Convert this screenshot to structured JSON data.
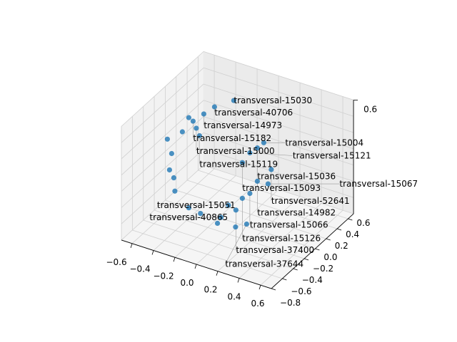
{
  "chart_data": {
    "type": "scatter",
    "projection": "3d",
    "title": "",
    "xlabel": "",
    "ylabel": "",
    "zlabel": "",
    "xlim": [
      -0.7,
      0.7
    ],
    "ylim": [
      -0.8,
      0.7
    ],
    "zlim": [
      -0.8,
      0.6
    ],
    "x_ticks": [
      "−0.6",
      "−0.4",
      "−0.2",
      "0.0",
      "0.2",
      "0.4",
      "0.6"
    ],
    "y_ticks": [
      "−0.8",
      "−0.6",
      "−0.4",
      "−0.2",
      "0.0",
      "0.2",
      "0.4",
      "0.6"
    ],
    "z_ticks": [
      "0.6"
    ],
    "grid": true,
    "marker_color": "#1f77b4",
    "points": [
      {
        "x": -0.06,
        "y": 0,
        "z": 0.7,
        "label": "transversal-15030"
      },
      {
        "x": -0.24,
        "y": 0,
        "z": 0.545,
        "label": "transversal-40706"
      },
      {
        "x": -0.34,
        "y": 0,
        "z": 0.415,
        "label": "transversal-14973"
      },
      {
        "x": -0.44,
        "y": 0,
        "z": 0.284,
        "label": "transversal-15182"
      },
      {
        "x": -0.41,
        "y": 0,
        "z": 0.21,
        "label": "transversal-15000"
      },
      {
        "x": -0.38,
        "y": 0,
        "z": 0.13,
        "label": "transversal-15119"
      },
      {
        "x": 0.22,
        "y": 0,
        "z": 0.3,
        "label": "transversal-15004"
      },
      {
        "x": 0.16,
        "y": 0,
        "z": 0.21,
        "label": "transversal-15036"
      },
      {
        "x": 0.09,
        "y": 0,
        "z": 0.12,
        "label": "transversal-15121"
      },
      {
        "x": 0.02,
        "y": 0,
        "z": -0.03,
        "label": "transversal-15093"
      },
      {
        "x": 0.29,
        "y": 0,
        "z": 0.0,
        "label": "transversal-52641"
      },
      {
        "x": 0.16,
        "y": 0,
        "z": -0.2,
        "label": "transversal-14982"
      },
      {
        "x": 0.26,
        "y": 0,
        "z": -0.19,
        "label": "transversal-15067"
      },
      {
        "x": 0.09,
        "y": 0,
        "z": -0.38,
        "label": "transversal-15066"
      },
      {
        "x": 0.02,
        "y": 0,
        "z": -0.47,
        "label": "transversal-15126"
      },
      {
        "x": -0.11,
        "y": 0,
        "z": -0.61,
        "label": "transversal-15051"
      },
      {
        "x": -0.04,
        "y": 0,
        "z": -0.64,
        "label": "transversal-37400"
      },
      {
        "x": -0.18,
        "y": 0,
        "z": -0.79,
        "label": "transversal-40865"
      },
      {
        "x": 0.06,
        "y": 0,
        "z": -0.77,
        "label": "transversal-37644"
      },
      {
        "x": -0.68,
        "y": 0,
        "z": -0.04,
        "label": ""
      },
      {
        "x": -0.64,
        "y": 0,
        "z": -0.2,
        "label": ""
      },
      {
        "x": -0.66,
        "y": 0,
        "z": -0.41,
        "label": ""
      },
      {
        "x": -0.61,
        "y": 0,
        "z": -0.65,
        "label": ""
      },
      {
        "x": -0.48,
        "y": 0,
        "z": -0.8,
        "label": ""
      },
      {
        "x": -0.48,
        "y": 0,
        "z": 0.31,
        "label": ""
      },
      {
        "x": -0.54,
        "y": 0,
        "z": 0.11,
        "label": ""
      },
      {
        "x": -0.62,
        "y": 0,
        "z": -0.49,
        "label": ""
      },
      {
        "x": -0.11,
        "y": -0.2,
        "z": -0.71,
        "label": ""
      },
      {
        "x": 0.11,
        "y": -0.3,
        "z": -0.6,
        "label": ""
      },
      {
        "x": -0.32,
        "y": -0.1,
        "z": -0.74,
        "label": ""
      }
    ]
  }
}
